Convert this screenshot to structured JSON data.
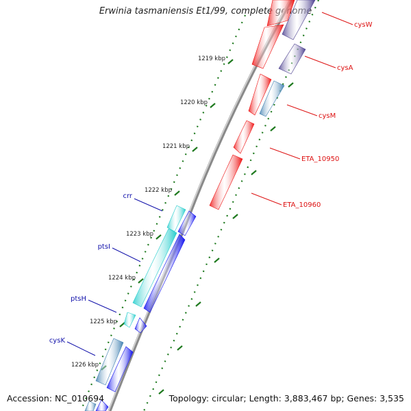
{
  "title": "Erwinia tasmaniensis Et1/99, complete genome",
  "accession": "Accession: NC_010694",
  "topology": "Topology: circular; Length: 3,883,467 bp; Genes: 3,535",
  "colors": {
    "red": "#ee1111",
    "navy": "#4a3e8e",
    "steel": "#3f7fb0",
    "cyan": "#22cccc",
    "blue": "#1111ee",
    "tick": "#1f7a1f",
    "backbone": "#8a8a8a",
    "redLabel": "#dd1111",
    "blueLabel": "#1111aa"
  },
  "ticks": [
    {
      "label": "1219 kbp"
    },
    {
      "label": "1220 kbp"
    },
    {
      "label": "1221 kbp"
    },
    {
      "label": "1222 kbp"
    },
    {
      "label": "1223 kbp"
    },
    {
      "label": "1224 kbp"
    },
    {
      "label": "1225 kbp"
    },
    {
      "label": "1226 kbp"
    }
  ],
  "gene_labels": [
    {
      "name": "cysW"
    },
    {
      "name": "cysA"
    },
    {
      "name": "cysM"
    },
    {
      "name": "ETA_10950"
    },
    {
      "name": "ETA_10960"
    },
    {
      "name": "crr"
    },
    {
      "name": "ptsI"
    },
    {
      "name": "ptsH"
    },
    {
      "name": "cysK"
    }
  ]
}
